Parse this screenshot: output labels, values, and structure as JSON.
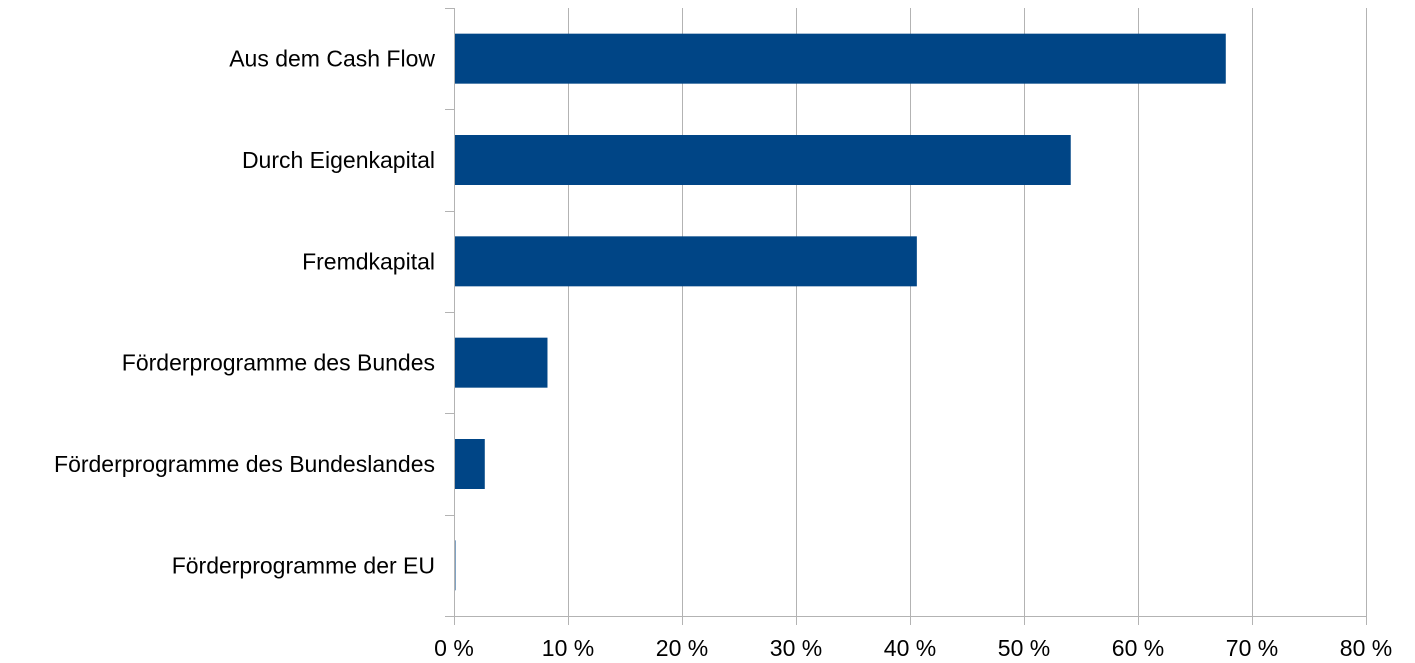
{
  "colors": {
    "bar": "#004586",
    "grid": "#b3b3b3",
    "axis": "#b3b3b3",
    "background": "#ffffff"
  },
  "chart_data": {
    "type": "bar",
    "orientation": "horizontal",
    "title": "",
    "xlabel": "",
    "ylabel": "",
    "categories": [
      "Aus dem Cash Flow",
      "Durch Eigenkapital",
      "Fremdkapital",
      "Förderprogramme des Bundes",
      "Förderprogramme des Bundeslandes",
      "Förderprogramme der EU"
    ],
    "values": [
      67.7,
      54.1,
      40.6,
      8.2,
      2.7,
      0.1
    ],
    "xlim": [
      0,
      80
    ],
    "x_ticks": [
      0,
      10,
      20,
      30,
      40,
      50,
      60,
      70,
      80
    ],
    "x_tick_labels": [
      "0 %",
      "10 %",
      "20 %",
      "30 %",
      "40 %",
      "50 %",
      "60 %",
      "70 %",
      "80 %"
    ],
    "value_unit": "%",
    "grid": true,
    "legend": "none"
  }
}
